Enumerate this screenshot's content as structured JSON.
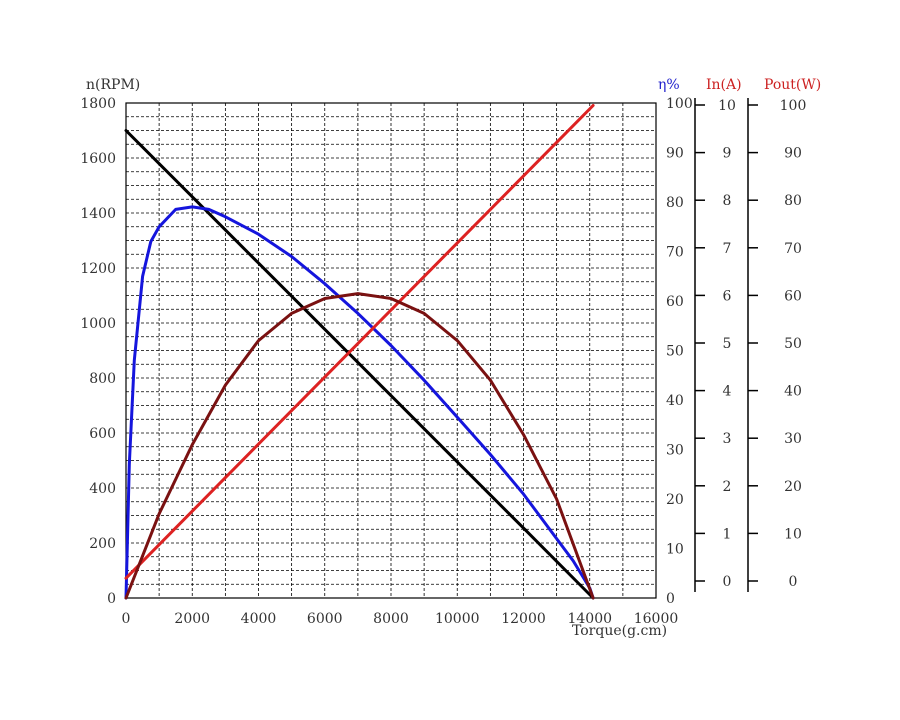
{
  "chart_data": {
    "type": "line",
    "xlabel": "Torque(g.cm)",
    "xlim": [
      0,
      16000
    ],
    "x_ticks": [
      "0",
      "2000",
      "4000",
      "6000",
      "8000",
      "10000",
      "12000",
      "14000",
      "16000"
    ],
    "axes": {
      "left": {
        "label": "n(RPM)",
        "ylim": [
          0,
          1800
        ],
        "ticks": [
          "0",
          "200",
          "400",
          "600",
          "800",
          "1000",
          "1200",
          "1400",
          "1600",
          "1800"
        ],
        "color": "#333333"
      },
      "eta": {
        "label": "η%",
        "ylim": [
          0,
          100
        ],
        "ticks": [
          "0",
          "10",
          "20",
          "30",
          "40",
          "50",
          "60",
          "70",
          "80",
          "90",
          "100"
        ],
        "color": "#2222cc"
      },
      "current": {
        "label": "In(A)",
        "ylim": [
          0,
          10
        ],
        "ticks": [
          "0",
          "1",
          "2",
          "3",
          "4",
          "5",
          "6",
          "7",
          "8",
          "9",
          "10"
        ],
        "color": "#cc2222"
      },
      "power": {
        "label": "Pout(W)",
        "ylim": [
          0,
          100
        ],
        "ticks": [
          "0",
          "10",
          "20",
          "30",
          "40",
          "50",
          "60",
          "70",
          "80",
          "90",
          "100"
        ],
        "color": "#cc2222"
      }
    },
    "grid": true,
    "series": [
      {
        "axis": "left",
        "color": "#000000",
        "x": [
          0,
          2000,
          4000,
          6000,
          8000,
          10000,
          12000,
          14100
        ],
        "y": [
          1700,
          1459,
          1218,
          977,
          736,
          495,
          254,
          0
        ]
      },
      {
        "axis": "eta",
        "color": "#1515dd",
        "x": [
          0,
          100,
          250,
          500,
          750,
          1000,
          1500,
          2000,
          2500,
          3000,
          4000,
          5000,
          6000,
          7000,
          8000,
          9000,
          10000,
          11000,
          12000,
          13000,
          13500,
          14000,
          14100
        ],
        "y": [
          0,
          27,
          48,
          65,
          72,
          75,
          78.5,
          79,
          78.5,
          77,
          73.5,
          69,
          63.5,
          57.5,
          51,
          44,
          36.5,
          29,
          21,
          12,
          7.5,
          2,
          0
        ]
      },
      {
        "axis": "current",
        "color": "#dd2222",
        "x": [
          0,
          14100
        ],
        "y": [
          0.4,
          9.95
        ]
      },
      {
        "axis": "power",
        "color": "#7a1111",
        "x": [
          0,
          1000,
          2000,
          3000,
          4000,
          5000,
          6000,
          7000,
          8000,
          9000,
          10000,
          11000,
          12000,
          13000,
          14100
        ],
        "y": [
          0,
          17,
          31,
          43,
          52,
          57.5,
          60.5,
          61.5,
          60.5,
          57.5,
          52,
          44,
          33,
          20,
          0
        ]
      }
    ]
  }
}
